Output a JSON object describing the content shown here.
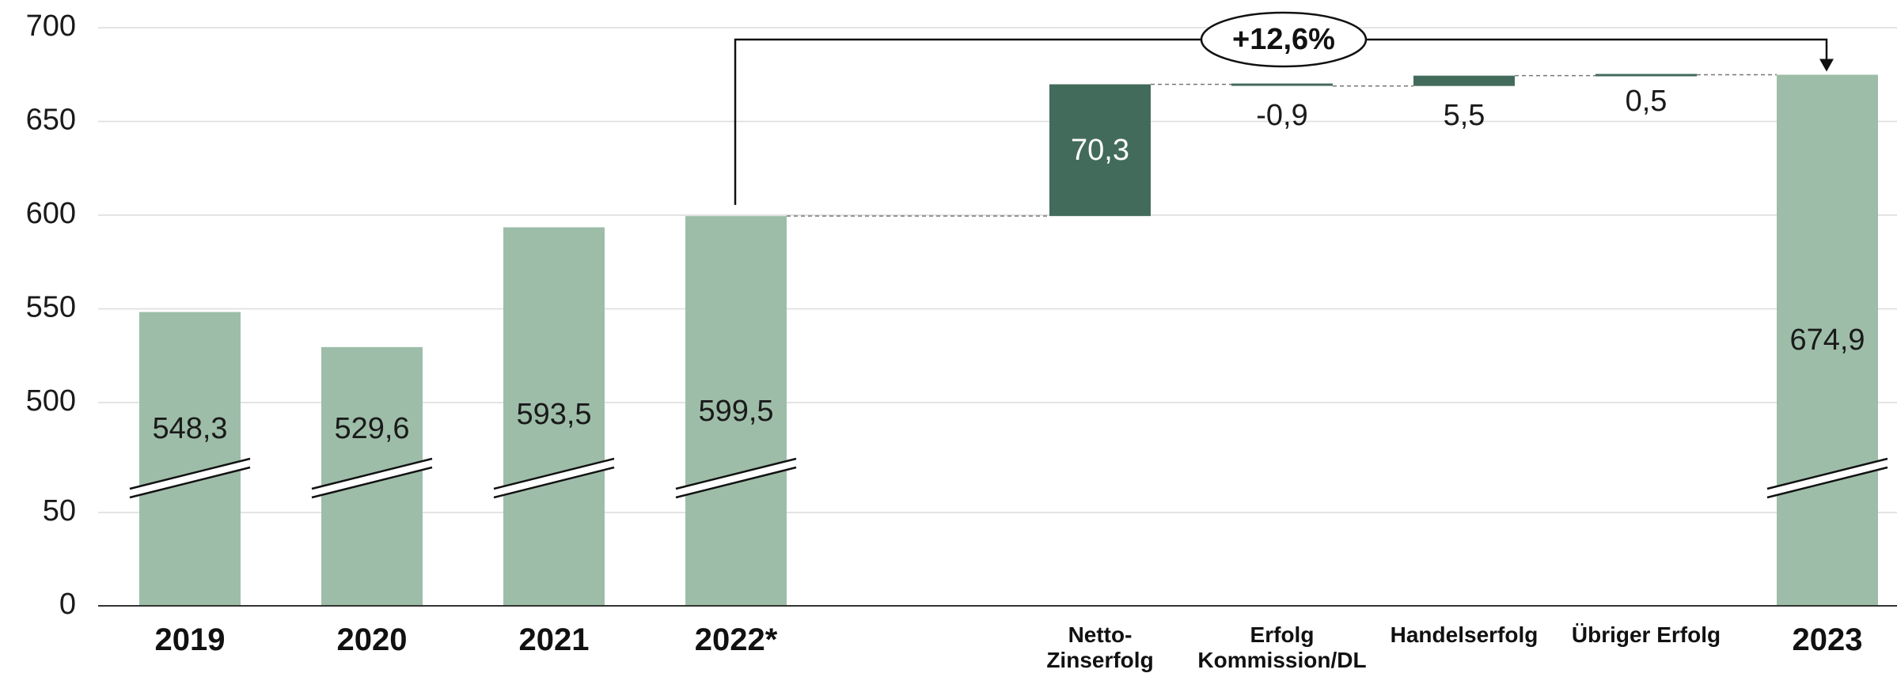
{
  "chart_data": {
    "type": "bar",
    "subtype": "waterfall",
    "title": "",
    "xlabel": "",
    "ylabel": "",
    "y_ticks": [
      "700",
      "650",
      "600",
      "550",
      "500",
      "50",
      "0"
    ],
    "ylim": [
      0,
      700
    ],
    "axis_break": "between 50 and 500",
    "grid": true,
    "colors": {
      "total": "#9dbda8",
      "change": "#436b5c",
      "gridline": "#dcdcdc",
      "axis": "#333333"
    },
    "totals": [
      {
        "category": "2019",
        "value": 548.3,
        "label": "548,3"
      },
      {
        "category": "2020",
        "value": 529.6,
        "label": "529,6"
      },
      {
        "category": "2021",
        "value": 593.5,
        "label": "593,5"
      },
      {
        "category": "2022*",
        "value": 599.5,
        "label": "599,5"
      },
      {
        "category": "2023",
        "value": 674.9,
        "label": "674,9"
      }
    ],
    "changes": [
      {
        "category_lines": [
          "Netto-",
          "Zinserfolg"
        ],
        "value": 70.3,
        "label": "70,3"
      },
      {
        "category_lines": [
          "Erfolg",
          "Kommission/DL"
        ],
        "value": -0.9,
        "label": "-0,9"
      },
      {
        "category_lines": [
          "Handelserfolg"
        ],
        "value": 5.5,
        "label": "5,5"
      },
      {
        "category_lines": [
          "Übriger Erfolg"
        ],
        "value": 0.5,
        "label": "0,5"
      }
    ],
    "annotation": {
      "text": "+12,6%",
      "from": "2022*",
      "to": "2023"
    }
  }
}
